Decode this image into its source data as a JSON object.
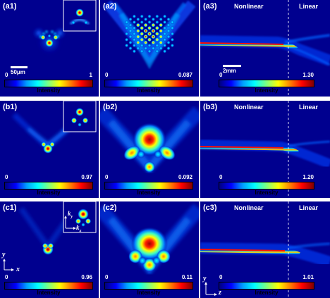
{
  "figure": {
    "rows": [
      {
        "panels": [
          {
            "label": "(a1)",
            "cbar_min": "0",
            "cbar_max": "1",
            "scalebar": "50μm"
          },
          {
            "label": "(a2)",
            "cbar_min": "0",
            "cbar_max": "0.087"
          },
          {
            "label": "(a3)",
            "cbar_min": "0",
            "cbar_max": "1.30",
            "scalebar": "2mm",
            "left_label": "Nonlinear",
            "right_label": "Linear"
          }
        ]
      },
      {
        "panels": [
          {
            "label": "(b1)",
            "cbar_min": "0",
            "cbar_max": "0.97"
          },
          {
            "label": "(b2)",
            "cbar_min": "0",
            "cbar_max": "0.092"
          },
          {
            "label": "(b3)",
            "cbar_min": "0",
            "cbar_max": "1.20",
            "left_label": "Nonlinear",
            "right_label": "Linear"
          }
        ]
      },
      {
        "panels": [
          {
            "label": "(c1)",
            "cbar_min": "0",
            "cbar_max": "0.96",
            "axis_v": "y",
            "axis_h": "x",
            "inset_axis_v": "k",
            "inset_axis_v_sub": "y",
            "inset_axis_h": "k",
            "inset_axis_h_sub": "x"
          },
          {
            "label": "(c2)",
            "cbar_min": "0",
            "cbar_max": "0.11"
          },
          {
            "label": "(c3)",
            "cbar_min": "0",
            "cbar_max": "1.01",
            "axis_v": "y",
            "axis_h": "z",
            "left_label": "Nonlinear",
            "right_label": "Linear"
          }
        ]
      }
    ],
    "colorbar_label": "Intensity",
    "colormap": [
      "#00007f",
      "#0000ff",
      "#00a0ff",
      "#00ffff",
      "#7fff7f",
      "#ffff00",
      "#ff8000",
      "#ff0000",
      "#7f0000"
    ],
    "background_color": "#00008f"
  }
}
